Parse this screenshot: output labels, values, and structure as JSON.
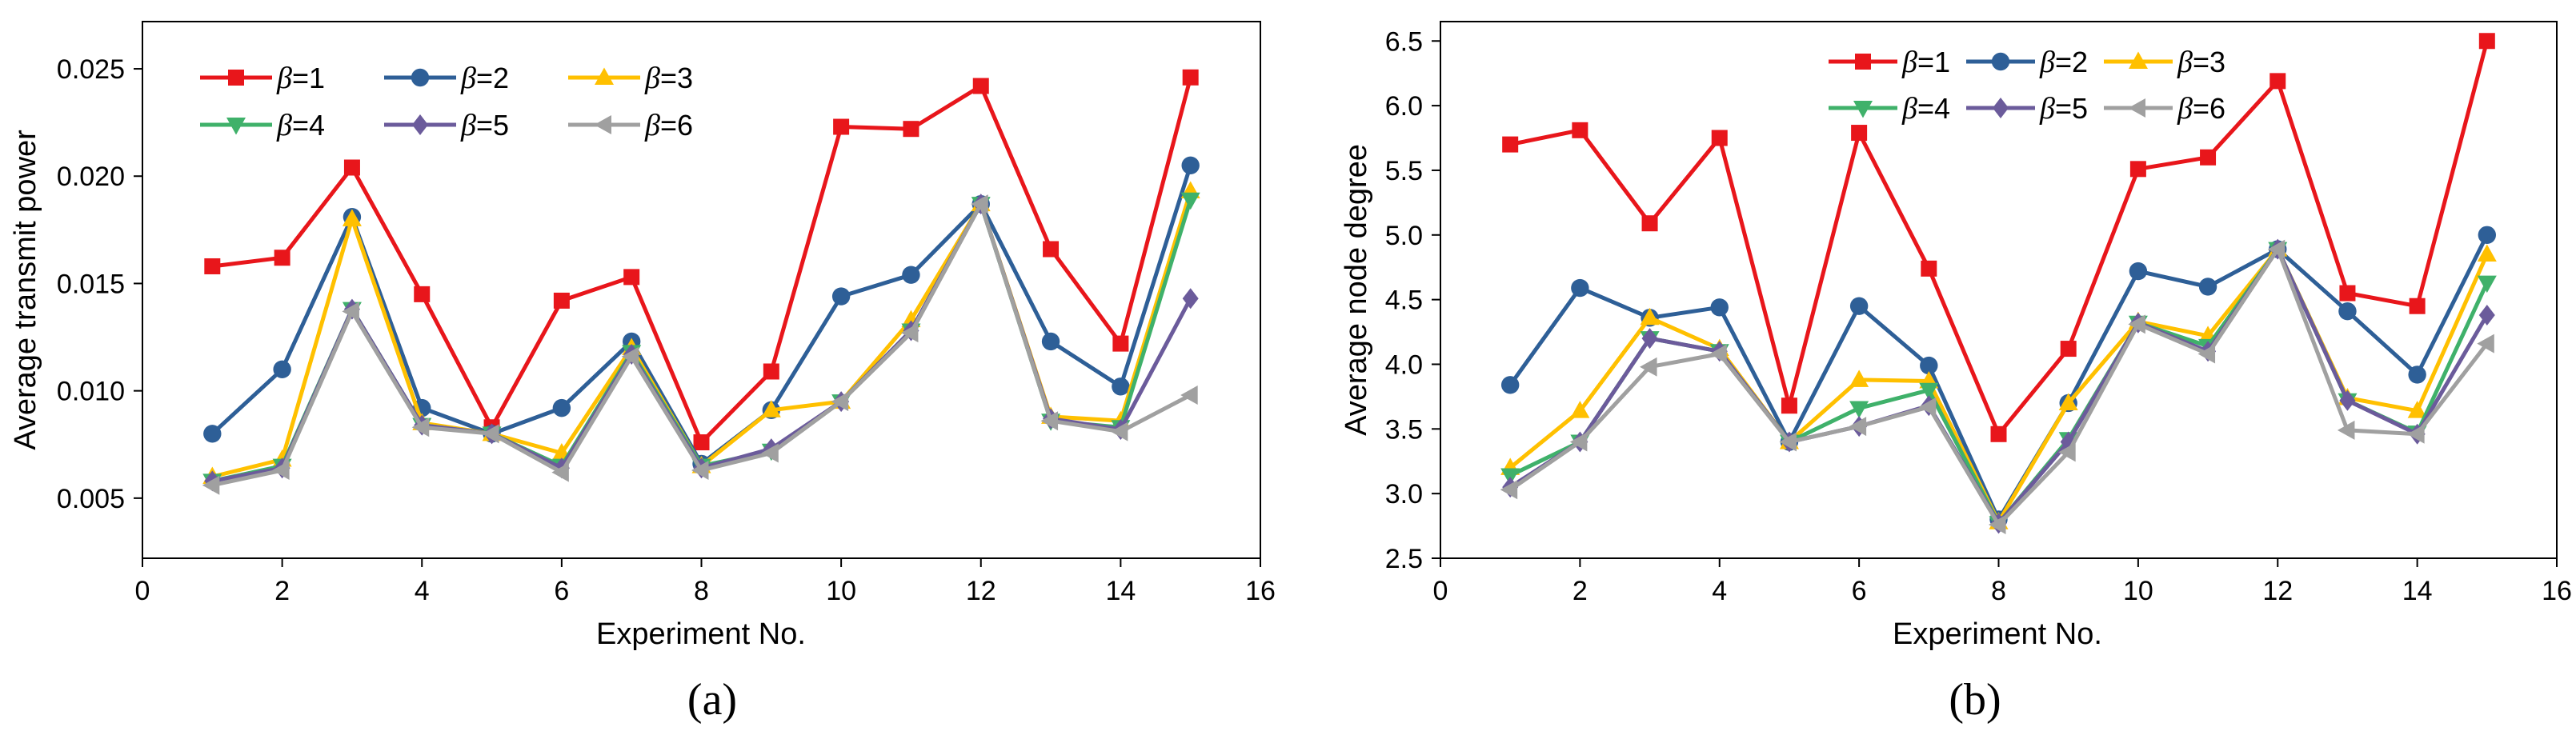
{
  "chart_data": [
    {
      "type": "line",
      "caption": "(a)",
      "xlabel": "Experiment No.",
      "ylabel": "Average transmit power",
      "xlim": [
        0,
        16
      ],
      "xticks": [
        0,
        2,
        4,
        6,
        8,
        10,
        12,
        14,
        16
      ],
      "xtick_labels": [
        "0",
        "2",
        "4",
        "6",
        "8",
        "10",
        "12",
        "14",
        "16"
      ],
      "ylim": [
        0.0022,
        0.0272
      ],
      "yticks": [
        0.005,
        0.01,
        0.015,
        0.02,
        0.025
      ],
      "ytick_labels": [
        "0.005",
        "0.010",
        "0.015",
        "0.020",
        "0.025"
      ],
      "legend_position": "top-left",
      "x": [
        1,
        2,
        3,
        4,
        5,
        6,
        7,
        8,
        9,
        10,
        11,
        12,
        13,
        14,
        15
      ],
      "series": [
        {
          "symbol": "β",
          "eq": "=1",
          "color": "#e8161b",
          "marker": "square",
          "values": [
            0.0158,
            0.0162,
            0.0204,
            0.0145,
            0.0083,
            0.0142,
            0.0153,
            0.0076,
            0.0109,
            0.0223,
            0.0222,
            0.0242,
            0.0166,
            0.0122,
            0.0246
          ]
        },
        {
          "symbol": "β",
          "eq": "=2",
          "color": "#2e5f97",
          "marker": "circle",
          "values": [
            0.008,
            0.011,
            0.0181,
            0.0092,
            0.008,
            0.0092,
            0.0123,
            0.0066,
            0.0091,
            0.0144,
            0.0154,
            0.0187,
            0.0123,
            0.0102,
            0.0205
          ]
        },
        {
          "symbol": "β",
          "eq": "=3",
          "color": "#ffc000",
          "marker": "triangle-up",
          "values": [
            0.006,
            0.0068,
            0.018,
            0.0085,
            0.008,
            0.0071,
            0.012,
            0.0065,
            0.0091,
            0.0095,
            0.0133,
            0.0187,
            0.0088,
            0.0086,
            0.0193
          ]
        },
        {
          "symbol": "β",
          "eq": "=4",
          "color": "#3fb16a",
          "marker": "triangle-down",
          "values": [
            0.0058,
            0.0065,
            0.0138,
            0.0084,
            0.008,
            0.0065,
            0.0118,
            0.0065,
            0.0072,
            0.0095,
            0.0128,
            0.0187,
            0.0086,
            0.0083,
            0.0189
          ]
        },
        {
          "symbol": "β",
          "eq": "=5",
          "color": "#6b5b9b",
          "marker": "diamond",
          "values": [
            0.0058,
            0.0064,
            0.0138,
            0.0084,
            0.008,
            0.0064,
            0.0117,
            0.0064,
            0.0073,
            0.0095,
            0.0128,
            0.0187,
            0.0087,
            0.0082,
            0.0143
          ]
        },
        {
          "symbol": "β",
          "eq": "=6",
          "color": "#a0a0a0",
          "marker": "triangle-left",
          "values": [
            0.0056,
            0.0063,
            0.0137,
            0.0083,
            0.008,
            0.0062,
            0.0116,
            0.0063,
            0.0071,
            0.0095,
            0.0127,
            0.0187,
            0.0086,
            0.0081,
            0.0098
          ]
        }
      ]
    },
    {
      "type": "line",
      "caption": "(b)",
      "xlabel": "Experiment No.",
      "ylabel": "Average node degree",
      "xlim": [
        0,
        16
      ],
      "xticks": [
        0,
        2,
        4,
        6,
        8,
        10,
        12,
        14,
        16
      ],
      "xtick_labels": [
        "0",
        "2",
        "4",
        "6",
        "8",
        "10",
        "12",
        "14",
        "16"
      ],
      "ylim": [
        2.5,
        6.65
      ],
      "yticks": [
        2.5,
        3.0,
        3.5,
        4.0,
        4.5,
        5.0,
        5.5,
        6.0,
        6.5
      ],
      "ytick_labels": [
        "2.5",
        "3.0",
        "3.5",
        "4.0",
        "4.5",
        "5.0",
        "5.5",
        "6.0",
        "6.5"
      ],
      "legend_position": "top-center",
      "x": [
        1,
        2,
        3,
        4,
        5,
        6,
        7,
        8,
        9,
        10,
        11,
        12,
        13,
        14,
        15
      ],
      "series": [
        {
          "symbol": "β",
          "eq": "=1",
          "color": "#e8161b",
          "marker": "square",
          "values": [
            5.7,
            5.81,
            5.09,
            5.75,
            3.68,
            5.79,
            4.74,
            3.46,
            4.12,
            5.51,
            5.6,
            6.19,
            4.55,
            4.45,
            6.5
          ]
        },
        {
          "symbol": "β",
          "eq": "=2",
          "color": "#2e5f97",
          "marker": "circle",
          "values": [
            3.84,
            4.59,
            4.36,
            4.44,
            3.4,
            4.45,
            3.99,
            2.8,
            3.7,
            4.72,
            4.6,
            4.89,
            4.41,
            3.92,
            5.0
          ]
        },
        {
          "symbol": "β",
          "eq": "=3",
          "color": "#ffc000",
          "marker": "triangle-up",
          "values": [
            3.2,
            3.64,
            4.36,
            4.12,
            3.4,
            3.88,
            3.87,
            2.78,
            3.7,
            4.33,
            4.22,
            4.89,
            3.74,
            3.64,
            4.85
          ]
        },
        {
          "symbol": "β",
          "eq": "=4",
          "color": "#3fb16a",
          "marker": "triangle-down",
          "values": [
            3.14,
            3.4,
            4.2,
            4.1,
            3.4,
            3.66,
            3.8,
            2.77,
            3.42,
            4.32,
            4.14,
            4.89,
            3.72,
            3.47,
            4.63
          ]
        },
        {
          "symbol": "β",
          "eq": "=5",
          "color": "#6b5b9b",
          "marker": "diamond",
          "values": [
            3.05,
            3.4,
            4.2,
            4.1,
            3.4,
            3.52,
            3.68,
            2.77,
            3.4,
            4.32,
            4.1,
            4.89,
            3.72,
            3.46,
            4.38
          ]
        },
        {
          "symbol": "β",
          "eq": "=6",
          "color": "#a0a0a0",
          "marker": "triangle-left",
          "values": [
            3.03,
            3.4,
            3.98,
            4.08,
            3.4,
            3.52,
            3.67,
            2.76,
            3.32,
            4.31,
            4.08,
            4.89,
            3.49,
            3.46,
            4.16
          ]
        }
      ]
    }
  ]
}
